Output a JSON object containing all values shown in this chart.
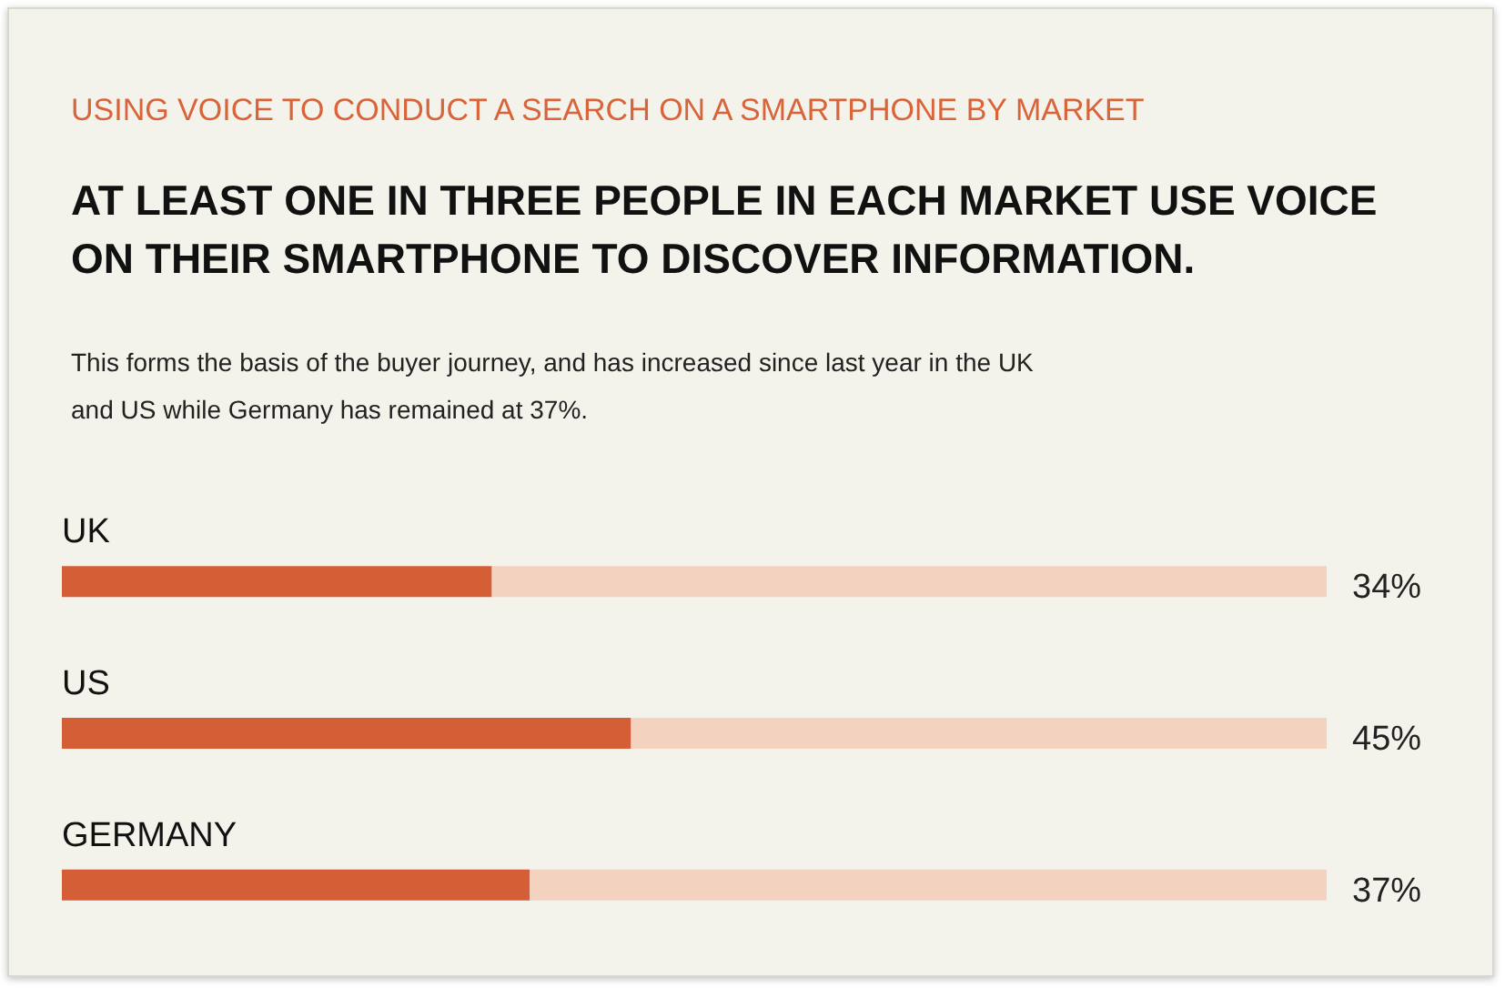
{
  "chart_data": {
    "type": "bar",
    "orientation": "horizontal",
    "stacked": true,
    "title": "USING VOICE TO CONDUCT A SEARCH ON A SMARTPHONE BY MARKET",
    "subtitle": "AT LEAST ONE IN THREE PEOPLE IN EACH MARKET USE VOICE ON THEIR SMARTPHONE TO DISCOVER INFORMATION.",
    "annotations": [
      "This forms the basis of the buyer journey, and has increased since last year in the UK and US while Germany has remained at 37%."
    ],
    "categories": [
      "UK",
      "US",
      "GERMANY"
    ],
    "series": [
      {
        "color": "#d45f36",
        "values": [
          34,
          45,
          37
        ],
        "value_labels": [
          "34%",
          "45%",
          "37%"
        ]
      },
      {
        "color": "#f3d3bf",
        "values": [
          66,
          55,
          63
        ]
      }
    ],
    "xlim": [
      0,
      100
    ],
    "tick_labels": false
  }
}
